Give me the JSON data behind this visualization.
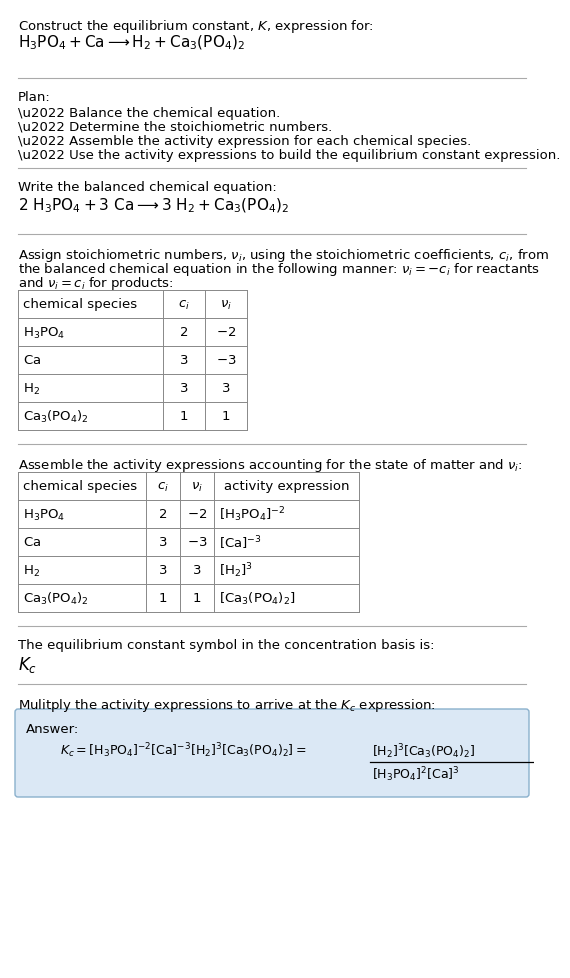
{
  "bg_color": "#ffffff",
  "text_color": "#000000",
  "line_color": "#aaaaaa",
  "title_line1": "Construct the equilibrium constant, $K$, expression for:",
  "title_line2": "$\\mathrm{H_3PO_4 + Ca \\longrightarrow H_2 + Ca_3(PO_4)_2}$",
  "plan_header": "Plan:",
  "plan_bullets": [
    "\\u2022 Balance the chemical equation.",
    "\\u2022 Determine the stoichiometric numbers.",
    "\\u2022 Assemble the activity expression for each chemical species.",
    "\\u2022 Use the activity expressions to build the equilibrium constant expression."
  ],
  "balanced_header": "Write the balanced chemical equation:",
  "balanced_eq": "$\\mathrm{2\\ H_3PO_4 + 3\\ Ca \\longrightarrow 3\\ H_2 + Ca_3(PO_4)_2}$",
  "stoich_text1": "Assign stoichiometric numbers, $\\nu_i$, using the stoichiometric coefficients, $c_i$, from",
  "stoich_text2": "the balanced chemical equation in the following manner: $\\nu_i = -c_i$ for reactants",
  "stoich_text3": "and $\\nu_i = c_i$ for products:",
  "table1_col0_header": "chemical species",
  "table1_col1_header": "$c_i$",
  "table1_col2_header": "$\\nu_i$",
  "table1_rows": [
    [
      "$\\mathrm{H_3PO_4}$",
      "2",
      "$-2$"
    ],
    [
      "$\\mathrm{Ca}$",
      "3",
      "$-3$"
    ],
    [
      "$\\mathrm{H_2}$",
      "3",
      "3"
    ],
    [
      "$\\mathrm{Ca_3(PO_4)_2}$",
      "1",
      "1"
    ]
  ],
  "activity_header": "Assemble the activity expressions accounting for the state of matter and $\\nu_i$:",
  "table2_col0_header": "chemical species",
  "table2_col1_header": "$c_i$",
  "table2_col2_header": "$\\nu_i$",
  "table2_col3_header": "activity expression",
  "table2_rows": [
    [
      "$\\mathrm{H_3PO_4}$",
      "2",
      "$-2$",
      "$[\\mathrm{H_3PO_4}]^{-2}$"
    ],
    [
      "$\\mathrm{Ca}$",
      "3",
      "$-3$",
      "$[\\mathrm{Ca}]^{-3}$"
    ],
    [
      "$\\mathrm{H_2}$",
      "3",
      "3",
      "$[\\mathrm{H_2}]^3$"
    ],
    [
      "$\\mathrm{Ca_3(PO_4)_2}$",
      "1",
      "1",
      "$[\\mathrm{Ca_3(PO_4)_2}]$"
    ]
  ],
  "kc_header": "The equilibrium constant symbol in the concentration basis is:",
  "kc_symbol": "$K_c$",
  "multiply_header": "Mulitply the activity expressions to arrive at the $K_c$ expression:",
  "answer_label": "Answer:",
  "answer_box_color": "#dbe8f5",
  "answer_box_edge": "#8ab0cc",
  "answer_eq_left": "$K_c = [\\mathrm{H_3PO_4}]^{-2} [\\mathrm{Ca}]^{-3} [\\mathrm{H_2}]^3 [\\mathrm{Ca_3(PO_4)_2}] = $",
  "answer_num": "$[\\mathrm{H_2}]^3 [\\mathrm{Ca_3(PO_4)_2}]$",
  "answer_den": "$[\\mathrm{H_3PO_4}]^2 [\\mathrm{Ca}]^3$"
}
